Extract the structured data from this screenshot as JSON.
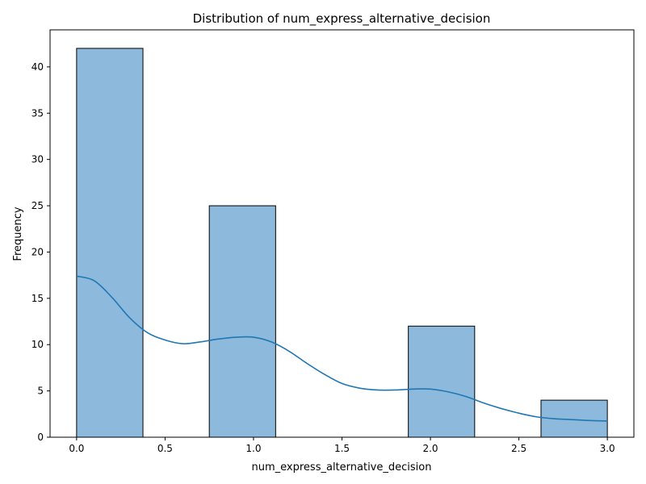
{
  "chart_data": {
    "type": "bar",
    "title": "Distribution of num_express_alternative_decision",
    "xlabel": "num_express_alternative_decision",
    "ylabel": "Frequency",
    "xlim": [
      -0.15,
      3.15
    ],
    "ylim": [
      0,
      44
    ],
    "grid": false,
    "bins": [
      {
        "start": 0.0,
        "end": 0.375,
        "value": 42
      },
      {
        "start": 0.75,
        "end": 1.125,
        "value": 25
      },
      {
        "start": 1.875,
        "end": 2.25,
        "value": 12
      },
      {
        "start": 2.625,
        "end": 3.0,
        "value": 4
      }
    ],
    "kde": {
      "x": [
        0.0,
        0.1,
        0.2,
        0.3,
        0.4,
        0.5,
        0.6,
        0.7,
        0.8,
        0.9,
        1.0,
        1.1,
        1.2,
        1.3,
        1.4,
        1.5,
        1.6,
        1.7,
        1.8,
        1.9,
        2.0,
        2.1,
        2.2,
        2.3,
        2.4,
        2.5,
        2.6,
        2.7,
        2.8,
        2.9,
        3.0
      ],
      "y": [
        17.4,
        16.9,
        15.1,
        12.9,
        11.3,
        10.5,
        10.1,
        10.3,
        10.6,
        10.8,
        10.8,
        10.3,
        9.3,
        8.0,
        6.8,
        5.8,
        5.3,
        5.1,
        5.1,
        5.2,
        5.2,
        4.9,
        4.4,
        3.7,
        3.1,
        2.6,
        2.2,
        2.0,
        1.9,
        1.8,
        1.75
      ]
    },
    "x_ticks": [
      {
        "value": 0.0,
        "label": "0.0"
      },
      {
        "value": 0.5,
        "label": "0.5"
      },
      {
        "value": 1.0,
        "label": "1.0"
      },
      {
        "value": 1.5,
        "label": "1.5"
      },
      {
        "value": 2.0,
        "label": "2.0"
      },
      {
        "value": 2.5,
        "label": "2.5"
      },
      {
        "value": 3.0,
        "label": "3.0"
      }
    ],
    "y_ticks": [
      {
        "value": 0,
        "label": "0"
      },
      {
        "value": 5,
        "label": "5"
      },
      {
        "value": 10,
        "label": "10"
      },
      {
        "value": 15,
        "label": "15"
      },
      {
        "value": 20,
        "label": "20"
      },
      {
        "value": 25,
        "label": "25"
      },
      {
        "value": 30,
        "label": "30"
      },
      {
        "value": 35,
        "label": "35"
      },
      {
        "value": 40,
        "label": "40"
      }
    ],
    "colors": {
      "bar_fill": "#8db9dc",
      "bar_edge": "#000000",
      "kde_line": "#1f77b4",
      "axis": "#000000"
    }
  }
}
